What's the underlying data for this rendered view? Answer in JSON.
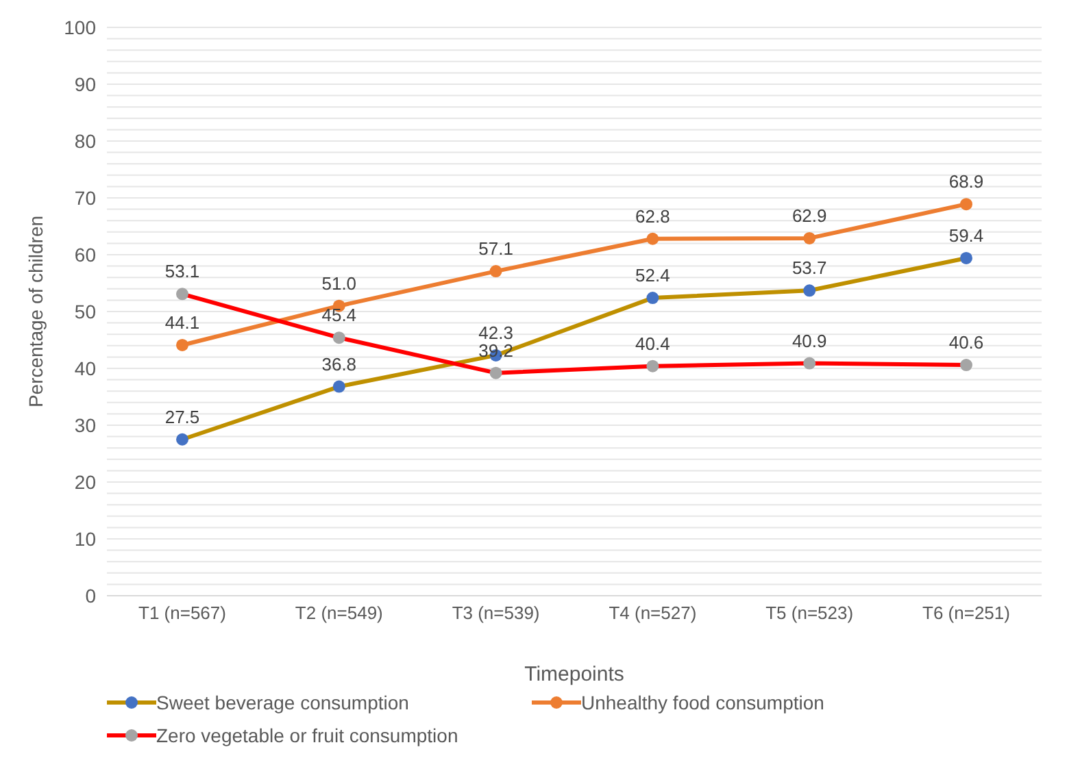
{
  "chart_data": {
    "type": "line",
    "xlabel": "Timepoints",
    "ylabel": "Percentage of children",
    "categories": [
      "T1 (n=567)",
      "T2 (n=549)",
      "T3 (n=539)",
      "T4 (n=527)",
      "T5 (n=523)",
      "T6 (n=251)"
    ],
    "series": [
      {
        "name": "Sweet beverage consumption",
        "color": "#bf9000",
        "colors": [
          "#4472c4",
          "#4472c4",
          "#4472c4",
          "#4472c4",
          "#4472c4",
          "#4472c4"
        ],
        "values": [
          27.5,
          36.8,
          42.3,
          52.4,
          53.7,
          59.4
        ],
        "value_labels": [
          "27.5",
          "36.8",
          "42.3",
          "52.4",
          "53.7",
          "59.4"
        ]
      },
      {
        "name": "Unhealthy food consumption",
        "color": "#ed7d31",
        "colors": [
          "#ed7d31",
          "#ed7d31",
          "#ed7d31",
          "#ed7d31",
          "#ed7d31",
          "#ed7d31"
        ],
        "values": [
          44.1,
          51.0,
          57.1,
          62.8,
          62.9,
          68.9
        ],
        "value_labels": [
          "44.1",
          "51.0",
          "57.1",
          "62.8",
          "62.9",
          "68.9"
        ]
      },
      {
        "name": "Zero vegetable or fruit consumption",
        "color": "#ff0000",
        "colors": [
          "#a5a5a5",
          "#a5a5a5",
          "#a5a5a5",
          "#a5a5a5",
          "#a5a5a5",
          "#a5a5a5"
        ],
        "values": [
          53.1,
          45.4,
          39.2,
          40.4,
          40.9,
          40.6
        ],
        "value_labels": [
          "53.1",
          "45.4",
          "39.2",
          "40.4",
          "40.9",
          "40.6"
        ]
      }
    ],
    "ylim": [
      0,
      100
    ],
    "yticks": [
      0,
      {
        "value": 2,
        "label": null
      },
      {
        "value": 4,
        "label": null
      },
      {
        "value": 6,
        "label": null
      },
      {
        "value": 8,
        "label": null
      },
      10,
      {
        "value": 12,
        "label": null
      },
      {
        "value": 14,
        "label": null
      },
      {
        "value": 16,
        "label": null
      },
      {
        "value": 18,
        "label": null
      },
      20,
      {
        "value": 22,
        "label": null
      },
      {
        "value": 24,
        "label": null
      },
      {
        "value": 26,
        "label": null
      },
      {
        "value": 28,
        "label": null
      },
      30,
      {
        "value": 32,
        "label": null
      },
      {
        "value": 34,
        "label": null
      },
      {
        "value": 36,
        "label": null
      },
      {
        "value": 38,
        "label": null
      },
      40,
      {
        "value": 42,
        "label": null
      },
      {
        "value": 44,
        "label": null
      },
      {
        "value": 46,
        "label": null
      },
      {
        "value": 48,
        "label": null
      },
      50,
      {
        "value": 52,
        "label": null
      },
      {
        "value": 54,
        "label": null
      },
      {
        "value": 56,
        "label": null
      },
      {
        "value": 58,
        "label": null
      },
      60,
      {
        "value": 62,
        "label": null
      },
      {
        "value": 64,
        "label": null
      },
      {
        "value": 66,
        "label": null
      },
      {
        "value": 68,
        "label": null
      },
      70,
      {
        "value": 72,
        "label": null
      },
      {
        "value": 74,
        "label": null
      },
      {
        "value": 76,
        "label": null
      },
      {
        "value": 78,
        "label": null
      },
      80,
      {
        "value": 82,
        "label": null
      },
      {
        "value": 84,
        "label": null
      },
      {
        "value": 86,
        "label": null
      },
      {
        "value": 88,
        "label": null
      },
      90,
      {
        "value": 92,
        "label": null
      },
      {
        "value": 94,
        "label": null
      },
      {
        "value": 96,
        "label": null
      },
      {
        "value": 98,
        "label": null
      },
      100
    ],
    "grid": "y",
    "legend": "bottom",
    "marker": "circle",
    "line_style": "solid"
  }
}
